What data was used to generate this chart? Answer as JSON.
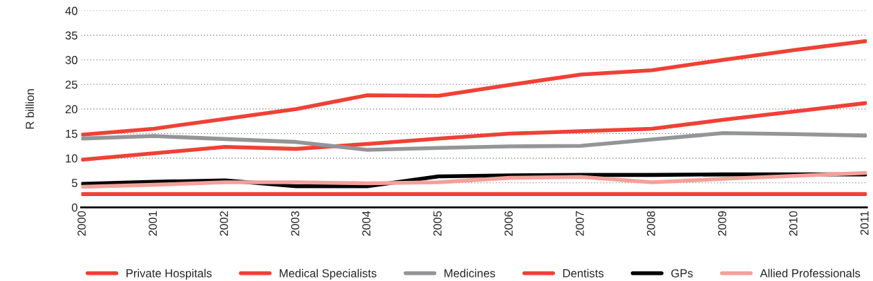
{
  "chart_data": {
    "type": "line",
    "ylabel": "R billion",
    "categories": [
      "2000",
      "2001",
      "2002",
      "2003",
      "2004",
      "2005",
      "2006",
      "2007",
      "2008",
      "2009",
      "2010",
      "2011"
    ],
    "ylim": [
      0,
      40
    ],
    "yticks": [
      0,
      5,
      10,
      15,
      20,
      25,
      30,
      35,
      40
    ],
    "grid": "y",
    "legend": "bottom",
    "line_style": "solid",
    "series": [
      {
        "name": "Private Hospitals",
        "color": "#ef4136",
        "values": [
          14.8,
          16,
          18,
          20,
          22.8,
          22.7,
          24.9,
          27,
          27.9,
          30,
          32,
          33.8
        ]
      },
      {
        "name": "Medical Specialists",
        "color": "#ef4136",
        "values": [
          9.7,
          11,
          12.3,
          11.9,
          12.9,
          14,
          15,
          15.5,
          16,
          17.8,
          19.5,
          21.2
        ]
      },
      {
        "name": "Medicines",
        "color": "#939598",
        "values": [
          14,
          14.5,
          13.9,
          13.3,
          11.7,
          12.1,
          12.4,
          12.5,
          13.8,
          15.1,
          14.9,
          14.6
        ]
      },
      {
        "name": "Dentists",
        "color": "#ef4136",
        "values": [
          2.7,
          2.7,
          2.7,
          2.7,
          2.7,
          2.7,
          2.7,
          2.7,
          2.7,
          2.7,
          2.7,
          2.7
        ]
      },
      {
        "name": "GPs",
        "color": "#000000",
        "values": [
          4.8,
          5.2,
          5.5,
          4.3,
          4.3,
          6.3,
          6.5,
          6.6,
          6.6,
          6.7,
          6.7,
          6.7
        ]
      },
      {
        "name": "Allied Professionals",
        "color": "#f4a09a",
        "values": [
          4.2,
          4.6,
          5.1,
          5.1,
          4.9,
          5.1,
          6.0,
          6.2,
          5.1,
          5.8,
          6.4,
          7.0
        ]
      }
    ]
  }
}
